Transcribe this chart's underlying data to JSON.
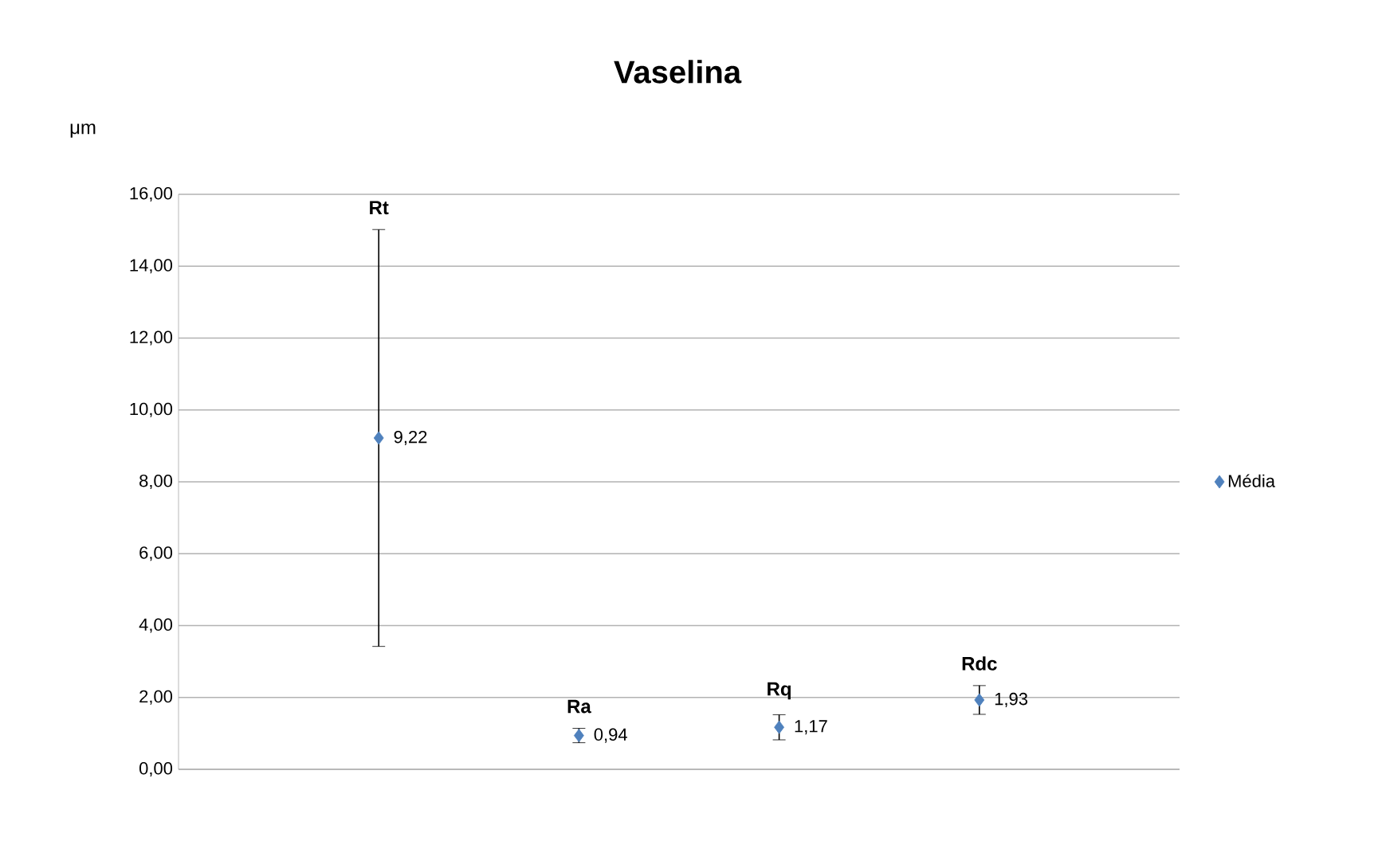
{
  "chart_data": {
    "type": "scatter",
    "title": "Vaselina",
    "ylabel": "μm",
    "categories": [
      "Rt",
      "Ra",
      "Rq",
      "Rdc"
    ],
    "series": [
      {
        "name": "Média",
        "color": "#4f81bd",
        "values": [
          9.22,
          0.94,
          1.17,
          1.93
        ],
        "errors": [
          5.8,
          0.2,
          0.35,
          0.4
        ],
        "value_labels": [
          "9,22",
          "0,94",
          "1,17",
          "1,93"
        ]
      }
    ],
    "ylim": [
      0,
      16
    ],
    "yticks": [
      {
        "value": 0,
        "label": "0,00"
      },
      {
        "value": 2,
        "label": "2,00"
      },
      {
        "value": 4,
        "label": "4,00"
      },
      {
        "value": 6,
        "label": "6,00"
      },
      {
        "value": 8,
        "label": "8,00"
      },
      {
        "value": 10,
        "label": "10,00"
      },
      {
        "value": 12,
        "label": "12,00"
      },
      {
        "value": 14,
        "label": "14,00"
      },
      {
        "value": 16,
        "label": "16,00"
      }
    ],
    "grid": "y",
    "legend": "right",
    "marker": "diamond"
  }
}
